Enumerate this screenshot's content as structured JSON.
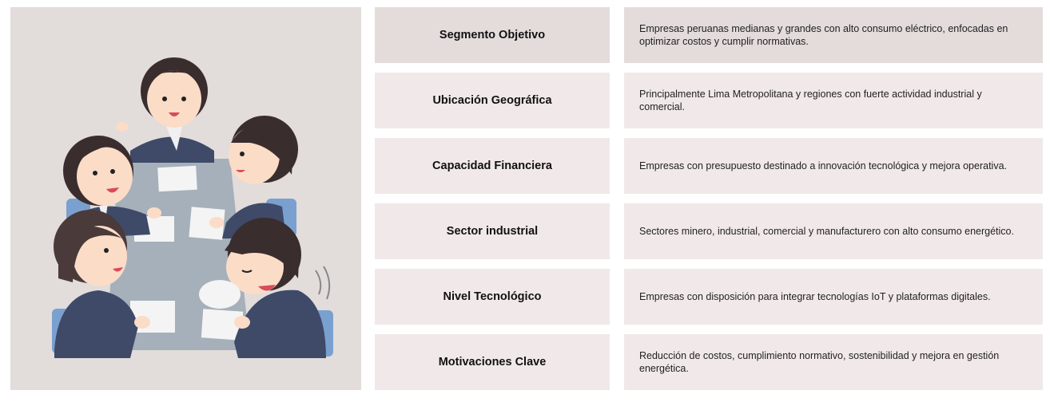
{
  "rows": [
    {
      "label": "Segmento Objetivo",
      "description": "Empresas  peruanas medianas y grandes con alto consumo eléctrico, enfocadas en optimizar costos y cumplir normativas."
    },
    {
      "label": "Ubicación Geográfica",
      "description": "Principalmente Lima Metropolitana y regiones con fuerte actividad industrial y comercial."
    },
    {
      "label": "Capacidad Financiera",
      "description": "Empresas con presupuesto destinado a innovación tecnológica y mejora operativa."
    },
    {
      "label": "Sector industrial",
      "description": "Sectores minero, industrial, comercial y manufacturero con alto consumo energético."
    },
    {
      "label": "Nivel Tecnológico",
      "description": "Empresas con disposición para integrar tecnologías IoT y plataformas digitales."
    },
    {
      "label": "Motivaciones Clave",
      "description": "Reducción de costos, cumplimiento normativo, sostenibilidad y mejora en gestión energética."
    }
  ],
  "colors": {
    "panel_bg": "#e2dcdb",
    "cell_bg_first": "#e3dcdb",
    "cell_bg": "#f1e9e9",
    "table_top": "#a5b0bb",
    "suit": "#3e4a68",
    "hair": "#3a2d2d",
    "chair": "#7aa0cf"
  }
}
